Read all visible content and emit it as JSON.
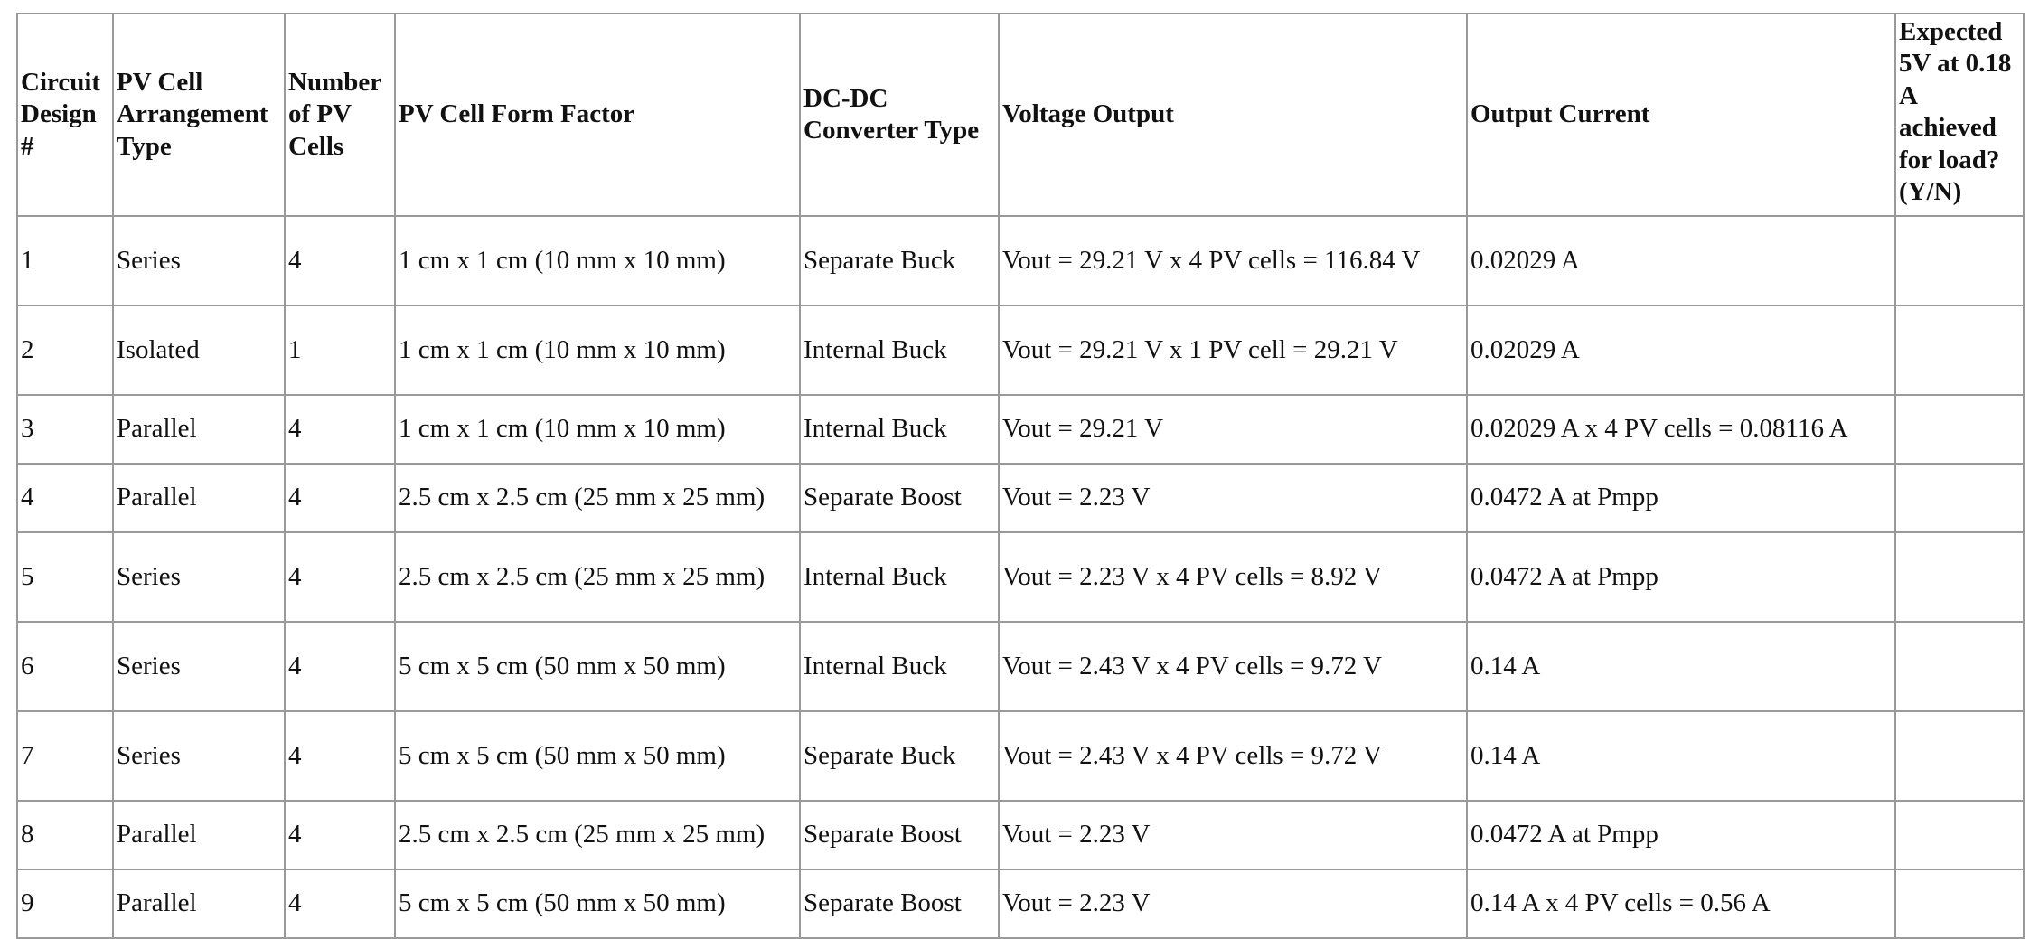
{
  "table": {
    "headers": [
      "Circuit Design #",
      "PV Cell Arrangement Type",
      "Number of PV Cells",
      "PV Cell Form Factor",
      "DC-DC Converter Type",
      "Voltage Output",
      "Output Current",
      "Expected 5V at 0.18 A achieved for load? (Y/N)"
    ],
    "rows": [
      [
        "1",
        "Series",
        "4",
        "1 cm x 1 cm (10 mm x 10 mm)",
        "Separate Buck",
        "Vout = 29.21 V x 4 PV cells = 116.84 V",
        "0.02029 A",
        ""
      ],
      [
        "2",
        "Isolated",
        "1",
        "1 cm x 1 cm (10 mm x 10 mm)",
        "Internal Buck",
        "Vout = 29.21 V x 1 PV cell = 29.21 V",
        "0.02029 A",
        ""
      ],
      [
        "3",
        "Parallel",
        "4",
        "1 cm x 1 cm (10 mm x 10 mm)",
        "Internal Buck",
        "Vout = 29.21 V",
        "0.02029 A x 4 PV cells = 0.08116 A",
        ""
      ],
      [
        "4",
        "Parallel",
        "4",
        "2.5 cm x 2.5 cm (25 mm x 25 mm)",
        "Separate Boost",
        "Vout = 2.23 V",
        "0.0472 A at Pmpp",
        ""
      ],
      [
        "5",
        "Series",
        "4",
        "2.5 cm x 2.5 cm (25 mm x 25 mm)",
        "Internal Buck",
        "Vout = 2.23 V x 4 PV cells = 8.92 V",
        "0.0472 A at Pmpp",
        ""
      ],
      [
        "6",
        "Series",
        "4",
        "5 cm x 5 cm (50 mm x 50 mm)",
        "Internal Buck",
        "Vout = 2.43 V x 4 PV cells = 9.72 V",
        "0.14 A",
        ""
      ],
      [
        "7",
        "Series",
        "4",
        "5 cm x 5 cm (50 mm x 50 mm)",
        "Separate Buck",
        "Vout = 2.43 V x 4 PV cells = 9.72 V",
        "0.14 A",
        ""
      ],
      [
        "8",
        "Parallel",
        "4",
        "2.5 cm x 2.5 cm (25 mm x 25 mm)",
        "Separate Boost",
        "Vout = 2.23 V",
        "0.0472 A at Pmpp",
        ""
      ],
      [
        "9",
        "Parallel",
        "4",
        "5 cm x 5 cm (50 mm x 50 mm)",
        "Separate Boost",
        "Vout = 2.23 V",
        "0.14 A x 4 PV cells = 0.56 A",
        ""
      ]
    ]
  }
}
